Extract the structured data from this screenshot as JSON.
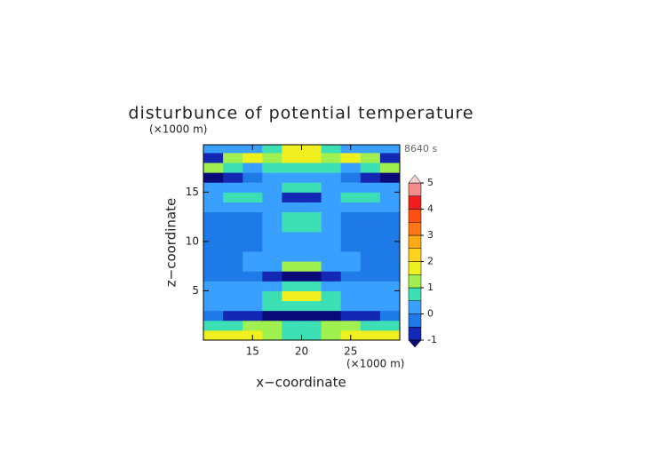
{
  "chart_data": {
    "type": "contour",
    "title": "disturbunce of potential temperature",
    "time_label": "8640 s",
    "x_label": "x−coordinate",
    "y_label": "z−coordinate",
    "x_unit": "(×1000 m)",
    "y_unit": "(×1000 m)",
    "xlim": [
      10,
      30
    ],
    "ylim": [
      0,
      19.8
    ],
    "xticks": [
      15,
      20,
      25
    ],
    "yticks": [
      5,
      10,
      15
    ],
    "x": [
      11,
      13,
      15,
      17,
      19,
      21,
      23,
      25,
      27,
      29
    ],
    "z": [
      0.5,
      1.5,
      2.5,
      3.5,
      4.5,
      5.5,
      6.5,
      7.5,
      8.5,
      9.5,
      10.5,
      11.5,
      12.5,
      13.5,
      14.5,
      15.5,
      16.5,
      17.5,
      18.5,
      19.5
    ],
    "values": [
      [
        1.7,
        1.7,
        1.7,
        1.2,
        0.8,
        0.8,
        1.2,
        1.7,
        1.7,
        1.7
      ],
      [
        0.7,
        0.8,
        1.2,
        1.3,
        0.8,
        0.8,
        1.3,
        1.2,
        0.8,
        0.7
      ],
      [
        -0.3,
        -0.6,
        -0.8,
        -1.2,
        -1.2,
        -1.2,
        -1.2,
        -0.8,
        -0.6,
        -0.3
      ],
      [
        0.2,
        0.3,
        0.4,
        0.6,
        0.7,
        0.7,
        0.6,
        0.4,
        0.3,
        0.2
      ],
      [
        0.2,
        0.2,
        0.3,
        0.7,
        1.6,
        1.6,
        0.7,
        0.3,
        0.2,
        0.2
      ],
      [
        0.1,
        0.2,
        0.2,
        0.3,
        0.5,
        0.5,
        0.3,
        0.2,
        0.2,
        0.1
      ],
      [
        -0.3,
        -0.3,
        -0.2,
        -0.6,
        -1.1,
        -1.1,
        -0.6,
        -0.2,
        -0.3,
        -0.3
      ],
      [
        -0.2,
        -0.2,
        0.1,
        0.3,
        1.1,
        1.1,
        0.3,
        0.1,
        -0.2,
        -0.2
      ],
      [
        -0.2,
        -0.2,
        0.1,
        0.2,
        0.3,
        0.3,
        0.2,
        0.1,
        -0.2,
        -0.2
      ],
      [
        -0.2,
        -0.2,
        -0.2,
        0.2,
        0.2,
        0.2,
        0.2,
        -0.2,
        -0.2,
        -0.2
      ],
      [
        -0.2,
        -0.2,
        -0.2,
        0.2,
        0.2,
        0.2,
        0.2,
        -0.2,
        -0.2,
        -0.2
      ],
      [
        -0.2,
        -0.2,
        -0.2,
        0.3,
        0.6,
        0.6,
        0.3,
        -0.2,
        -0.2,
        -0.2
      ],
      [
        -0.2,
        -0.2,
        -0.2,
        0.2,
        0.7,
        0.7,
        0.2,
        -0.2,
        -0.2,
        -0.2
      ],
      [
        0.2,
        0.2,
        0.2,
        0.2,
        0.2,
        0.2,
        0.2,
        0.2,
        0.2,
        0.2
      ],
      [
        0.2,
        0.7,
        0.7,
        0.2,
        -0.7,
        -0.7,
        0.2,
        0.7,
        0.7,
        0.2
      ],
      [
        0.2,
        0.2,
        0.3,
        0.4,
        0.7,
        0.7,
        0.4,
        0.3,
        0.2,
        0.2
      ],
      [
        -1.2,
        -0.8,
        -0.3,
        0.3,
        0.3,
        0.3,
        0.3,
        -0.3,
        -0.8,
        -1.2
      ],
      [
        1.1,
        0.7,
        0.3,
        0.6,
        0.8,
        0.8,
        0.6,
        0.3,
        0.7,
        1.1
      ],
      [
        -0.7,
        1.2,
        1.8,
        1.2,
        1.7,
        1.7,
        1.2,
        1.8,
        1.2,
        -0.7
      ],
      [
        0.2,
        0.2,
        0.3,
        0.6,
        1.6,
        1.6,
        0.6,
        0.3,
        0.2,
        0.2
      ]
    ],
    "levels": [
      -1,
      -0.5,
      0,
      0.5,
      1,
      1.5,
      2,
      2.5,
      3,
      3.5,
      4,
      4.5,
      5
    ],
    "colors": [
      "#0a0a78",
      "#1428b4",
      "#1e7ae6",
      "#3aa0ff",
      "#3de0b4",
      "#a0f050",
      "#f0f020",
      "#ffd21e",
      "#ffaa14",
      "#ff7814",
      "#ff5014",
      "#f01e1e",
      "#f58c8c",
      "#f5d2d2"
    ],
    "colorbar_ticks": [
      -1,
      0,
      1,
      2,
      3,
      4,
      5
    ]
  }
}
